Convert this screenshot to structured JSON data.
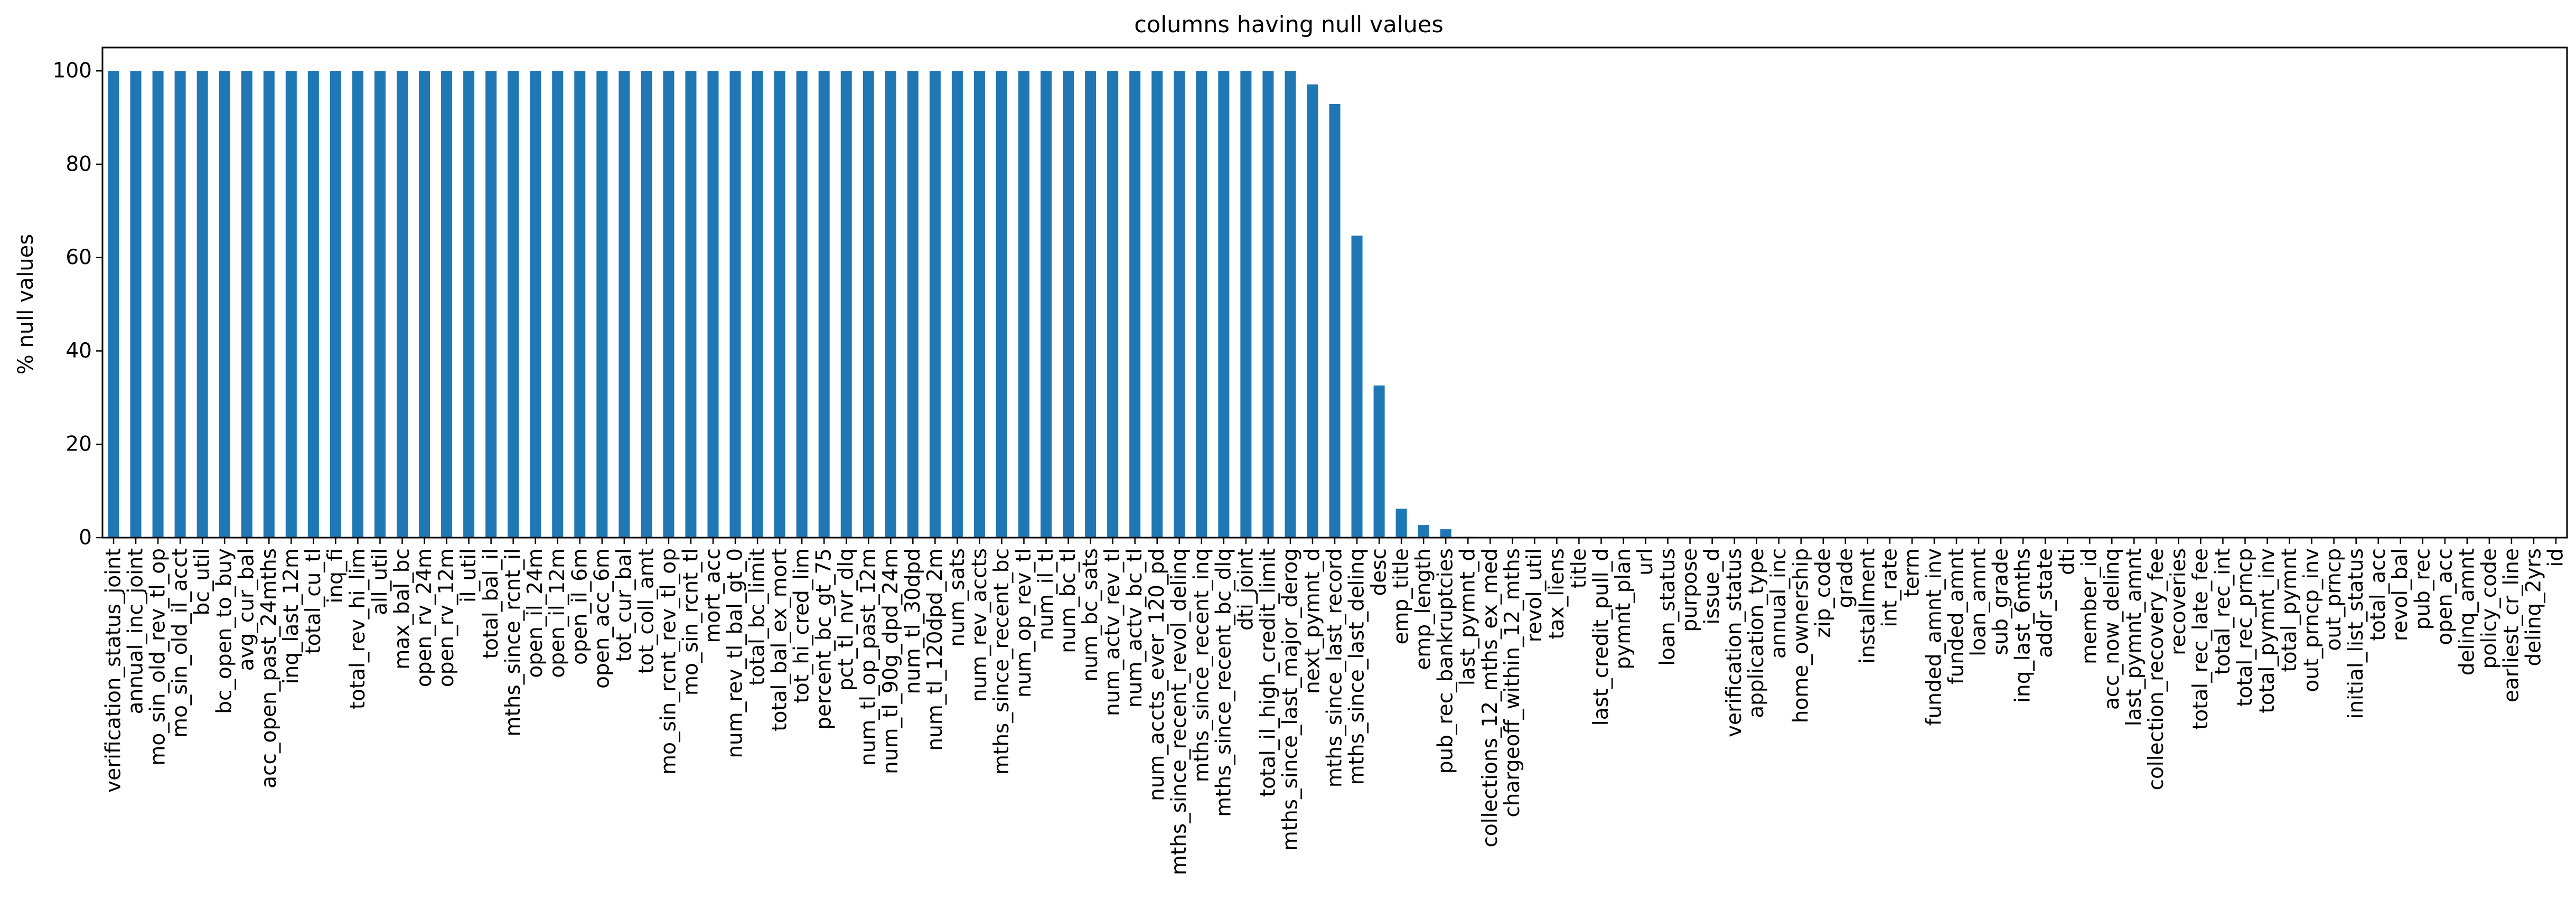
{
  "chart_data": {
    "type": "bar",
    "title": "columns having null values",
    "xlabel": "",
    "ylabel": "% null values",
    "ylim": [
      0,
      105
    ],
    "yticks": [
      0,
      20,
      40,
      60,
      80,
      100
    ],
    "grid": false,
    "legend": "none",
    "bar_color": "#1f77b4",
    "categories": [
      "verification_status_joint",
      "annual_inc_joint",
      "mo_sin_old_rev_tl_op",
      "mo_sin_old_il_acct",
      "bc_util",
      "bc_open_to_buy",
      "avg_cur_bal",
      "acc_open_past_24mths",
      "inq_last_12m",
      "total_cu_tl",
      "inq_fi",
      "total_rev_hi_lim",
      "all_util",
      "max_bal_bc",
      "open_rv_24m",
      "open_rv_12m",
      "il_util",
      "total_bal_il",
      "mths_since_rcnt_il",
      "open_il_24m",
      "open_il_12m",
      "open_il_6m",
      "open_acc_6m",
      "tot_cur_bal",
      "tot_coll_amt",
      "mo_sin_rcnt_rev_tl_op",
      "mo_sin_rcnt_tl",
      "mort_acc",
      "num_rev_tl_bal_gt_0",
      "total_bc_limit",
      "total_bal_ex_mort",
      "tot_hi_cred_lim",
      "percent_bc_gt_75",
      "pct_tl_nvr_dlq",
      "num_tl_op_past_12m",
      "num_tl_90g_dpd_24m",
      "num_tl_30dpd",
      "num_tl_120dpd_2m",
      "num_sats",
      "num_rev_accts",
      "mths_since_recent_bc",
      "num_op_rev_tl",
      "num_il_tl",
      "num_bc_tl",
      "num_bc_sats",
      "num_actv_rev_tl",
      "num_actv_bc_tl",
      "num_accts_ever_120_pd",
      "mths_since_recent_revol_delinq",
      "mths_since_recent_inq",
      "mths_since_recent_bc_dlq",
      "dti_joint",
      "total_il_high_credit_limit",
      "mths_since_last_major_derog",
      "next_pymnt_d",
      "mths_since_last_record",
      "mths_since_last_delinq",
      "desc",
      "emp_title",
      "emp_length",
      "pub_rec_bankruptcies",
      "last_pymnt_d",
      "collections_12_mths_ex_med",
      "chargeoff_within_12_mths",
      "revol_util",
      "tax_liens",
      "title",
      "last_credit_pull_d",
      "pymnt_plan",
      "url",
      "loan_status",
      "purpose",
      "issue_d",
      "verification_status",
      "application_type",
      "annual_inc",
      "home_ownership",
      "zip_code",
      "grade",
      "installment",
      "int_rate",
      "term",
      "funded_amnt_inv",
      "funded_amnt",
      "loan_amnt",
      "sub_grade",
      "inq_last_6mths",
      "addr_state",
      "dti",
      "member_id",
      "acc_now_delinq",
      "last_pymnt_amnt",
      "collection_recovery_fee",
      "recoveries",
      "total_rec_late_fee",
      "total_rec_int",
      "total_rec_prncp",
      "total_pymnt_inv",
      "total_pymnt",
      "out_prncp_inv",
      "out_prncp",
      "initial_list_status",
      "total_acc",
      "revol_bal",
      "pub_rec",
      "open_acc",
      "delinq_amnt",
      "policy_code",
      "earliest_cr_line",
      "delinq_2yrs",
      "id"
    ],
    "values": [
      100,
      100,
      100,
      100,
      100,
      100,
      100,
      100,
      100,
      100,
      100,
      100,
      100,
      100,
      100,
      100,
      100,
      100,
      100,
      100,
      100,
      100,
      100,
      100,
      100,
      100,
      100,
      100,
      100,
      100,
      100,
      100,
      100,
      100,
      100,
      100,
      100,
      100,
      100,
      100,
      100,
      100,
      100,
      100,
      100,
      100,
      100,
      100,
      100,
      100,
      100,
      100,
      100,
      100,
      97.1,
      92.9,
      64.7,
      32.6,
      6.2,
      2.7,
      1.8,
      0.2,
      0.1,
      0.1,
      0.1,
      0.1,
      0.03,
      0.01,
      0,
      0,
      0,
      0,
      0,
      0,
      0,
      0,
      0,
      0,
      0,
      0,
      0,
      0,
      0,
      0,
      0,
      0,
      0,
      0,
      0,
      0,
      0,
      0,
      0,
      0,
      0,
      0,
      0,
      0,
      0,
      0,
      0,
      0,
      0,
      0,
      0,
      0,
      0,
      0,
      0,
      0,
      0
    ]
  }
}
